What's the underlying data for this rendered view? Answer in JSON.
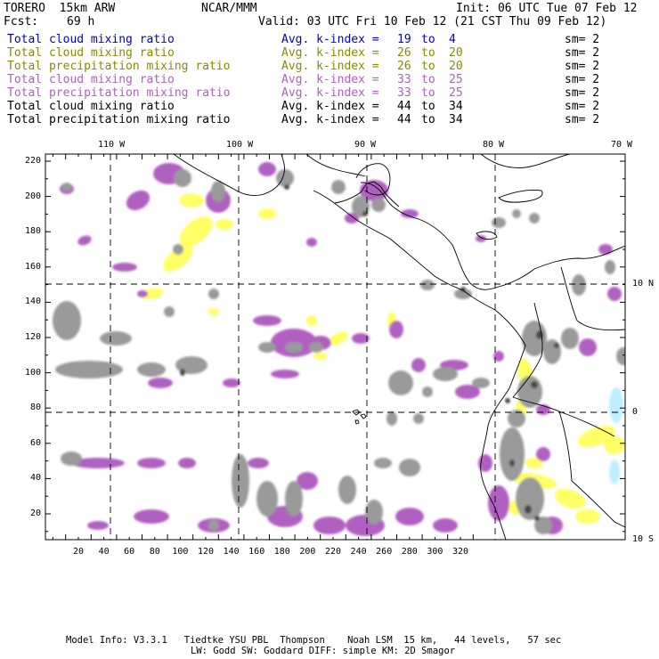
{
  "header": {
    "model": "TORERO  15km ARW",
    "org": "NCAR/MMM",
    "init": "Init: 06 UTC Tue 07 Feb 12",
    "fcst_label": "Fcst:",
    "fcst_value": "69 h",
    "valid": "Valid: 03 UTC Fri 10 Feb 12 (21 CST Thu 09 Feb 12)"
  },
  "legend": [
    {
      "label": "Total cloud mixing ratio",
      "kidx": "Avg. k-index =",
      "from": "19",
      "to_word": "to",
      "to": "4",
      "sm": "sm= 2",
      "color": "#0000cc",
      "kcolor": "#0000cc"
    },
    {
      "label": "Total cloud mixing ratio",
      "kidx": "Avg. k-index =",
      "from": "26",
      "to_word": "to",
      "to": "20",
      "sm": "sm= 2",
      "color": "#8a8a00",
      "kcolor": "#8a8a00"
    },
    {
      "label": "Total precipitation mixing ratio",
      "kidx": "Avg. k-index =",
      "from": "26",
      "to_word": "to",
      "to": "20",
      "sm": "sm= 2",
      "color": "#8a8a00",
      "kcolor": "#8a8a00"
    },
    {
      "label": "Total cloud mixing ratio",
      "kidx": "Avg. k-index =",
      "from": "33",
      "to_word": "to",
      "to": "25",
      "sm": "sm= 2",
      "color": "#b060c0",
      "kcolor": "#b060c0"
    },
    {
      "label": "Total precipitation mixing ratio",
      "kidx": "Avg. k-index =",
      "from": "33",
      "to_word": "to",
      "to": "25",
      "sm": "sm= 2",
      "color": "#b060c0",
      "kcolor": "#b060c0"
    },
    {
      "label": "Total cloud mixing ratio",
      "kidx": "Avg. k-index =",
      "from": "44",
      "to_word": "to",
      "to": "34",
      "sm": "sm= 2",
      "color": "#000000",
      "kcolor": "#000000"
    },
    {
      "label": "Total precipitation mixing ratio",
      "kidx": "Avg. k-index =",
      "from": "44",
      "to_word": "to",
      "to": "34",
      "sm": "sm= 2",
      "color": "#000000",
      "kcolor": "#000000"
    }
  ],
  "axes": {
    "top_lon": [
      "110 W",
      "100 W",
      "90 W",
      "80 W",
      "70 W"
    ],
    "right_lat": [
      "10 N",
      "0",
      "10 S"
    ],
    "y_ticks": [
      "220",
      "200",
      "180",
      "160",
      "140",
      "120",
      "100",
      "80",
      "60",
      "40",
      "20"
    ],
    "x_ticks": [
      "20",
      "40",
      "60",
      "80",
      "100",
      "120",
      "140",
      "160",
      "180",
      "200",
      "220",
      "240",
      "260",
      "280",
      "300",
      "320"
    ]
  },
  "footer": {
    "line1": "Model Info: V3.3.1   Tiedtke YSU PBL  Thompson    Noah LSM  15 km,   44 levels,   57 sec",
    "line2": "LW: Godd SW: Goddard DIFF: simple KM: 2D Smagor"
  },
  "colors": {
    "purple": "#b060c0",
    "yellow": "#ffff66",
    "gray": "#9a9a9a",
    "dark": "#4a4a4a",
    "cyan": "#bfefff"
  }
}
